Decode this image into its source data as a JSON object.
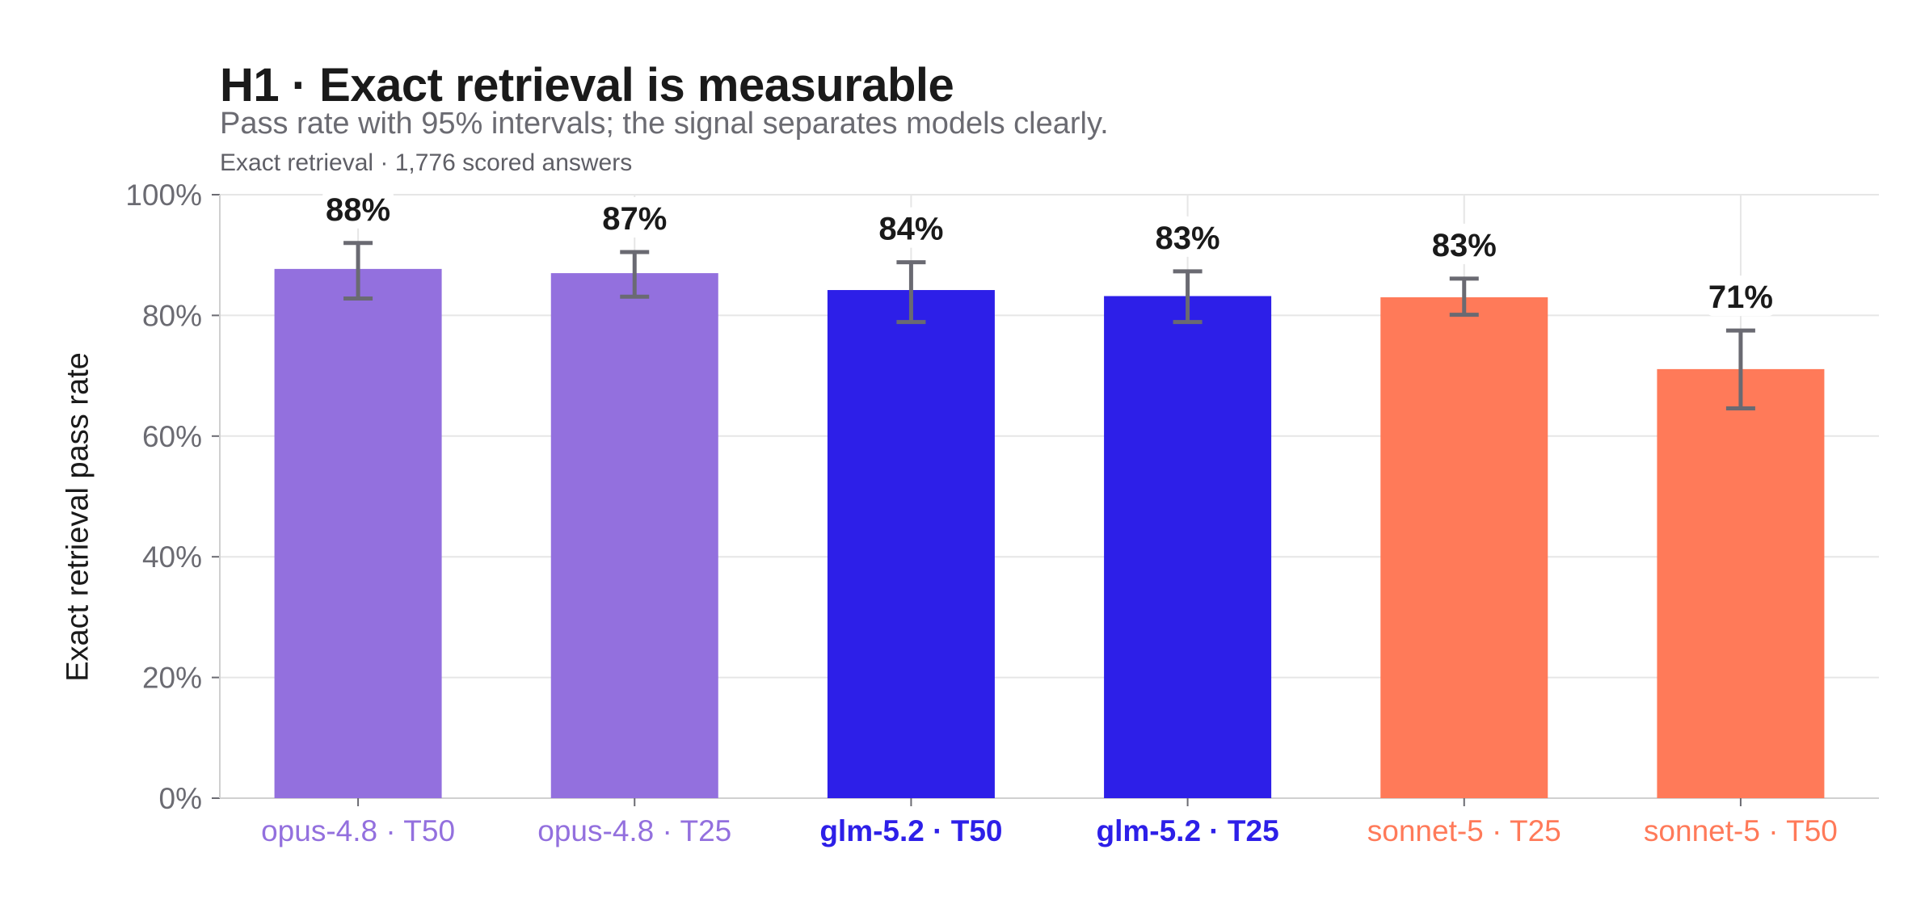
{
  "title": "H1 · Exact retrieval is measurable",
  "subtitle": "Pass rate with 95% intervals; the signal separates models clearly.",
  "caption": "Exact retrieval · 1,776 scored answers",
  "colors": {
    "opus": "#9370de",
    "glm": "#2d1fe8",
    "sonnet": "#ff7a59",
    "error_bar": "#6a6a72",
    "grid": "#e6e6e6",
    "tick_text": "#6b6b72"
  },
  "chart_data": {
    "type": "bar",
    "title": "H1 · Exact retrieval is measurable",
    "subtitle": "Pass rate with 95% intervals; the signal separates models clearly.",
    "ylabel": "Exact retrieval pass rate",
    "xlabel": "",
    "ylim": [
      0,
      1
    ],
    "y_ticks": [
      0,
      0.2,
      0.4,
      0.6,
      0.8,
      1.0
    ],
    "y_tick_labels": [
      "0%",
      "20%",
      "40%",
      "60%",
      "80%",
      "100%"
    ],
    "grid": true,
    "categories": [
      "opus-4.8 · T50",
      "opus-4.8 · T25",
      "glm-5.2 · T50",
      "glm-5.2 · T25",
      "sonnet-5 · T25",
      "sonnet-5 · T50"
    ],
    "values": [
      0.877,
      0.87,
      0.842,
      0.832,
      0.83,
      0.711
    ],
    "value_labels": [
      "88%",
      "87%",
      "84%",
      "83%",
      "83%",
      "71%"
    ],
    "ci_lower": [
      0.828,
      0.831,
      0.789,
      0.789,
      0.801,
      0.646
    ],
    "ci_upper": [
      0.92,
      0.905,
      0.888,
      0.873,
      0.861,
      0.775
    ],
    "bar_groups": [
      "opus",
      "opus",
      "glm",
      "glm",
      "sonnet",
      "sonnet"
    ],
    "category_bold": [
      false,
      false,
      true,
      true,
      false,
      false
    ]
  }
}
